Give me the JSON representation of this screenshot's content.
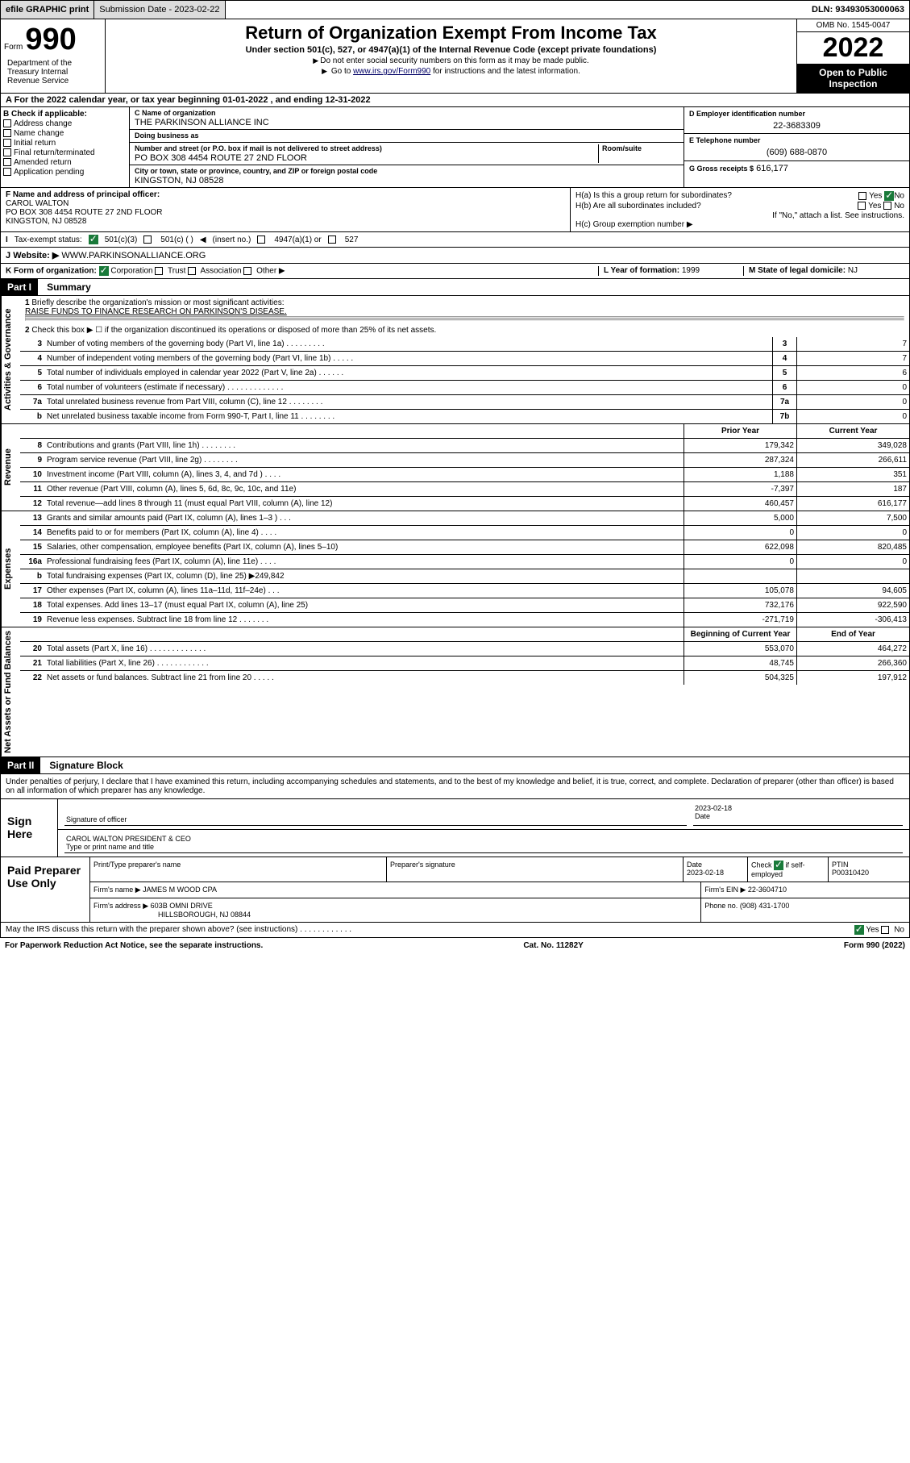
{
  "top": {
    "efile": "efile GRAPHIC print",
    "sub_label": "Submission Date - 2023-02-22",
    "dln": "DLN: 93493053000063"
  },
  "header": {
    "form_label": "Form",
    "form_num": "990",
    "title": "Return of Organization Exempt From Income Tax",
    "sub": "Under section 501(c), 527, or 4947(a)(1) of the Internal Revenue Code (except private foundations)",
    "note1": "Do not enter social security numbers on this form as it may be made public.",
    "note2_pre": "Go to ",
    "note2_link": "www.irs.gov/Form990",
    "note2_post": " for instructions and the latest information.",
    "dept": "Department of the Treasury Internal Revenue Service",
    "omb": "OMB No. 1545-0047",
    "year": "2022",
    "open_pub": "Open to Public Inspection"
  },
  "sectionA": "For the 2022 calendar year, or tax year beginning 01-01-2022    , and ending 12-31-2022",
  "colB": {
    "label": "B Check if applicable:",
    "opts": [
      "Address change",
      "Name change",
      "Initial return",
      "Final return/terminated",
      "Amended return",
      "Application pending"
    ]
  },
  "colC": {
    "name_label": "C Name of organization",
    "name": "THE PARKINSON ALLIANCE INC",
    "dba_label": "Doing business as",
    "dba": "",
    "street_label": "Number and street (or P.O. box if mail is not delivered to street address)",
    "street": "PO BOX 308 4454 ROUTE 27 2ND FLOOR",
    "room_label": "Room/suite",
    "city_label": "City or town, state or province, country, and ZIP or foreign postal code",
    "city": "KINGSTON, NJ  08528"
  },
  "colD": {
    "label": "D Employer identification number",
    "val": "22-3683309"
  },
  "colE": {
    "label": "E Telephone number",
    "val": "(609) 688-0870"
  },
  "colG": {
    "label": "G Gross receipts $",
    "val": "616,177"
  },
  "rowF": {
    "label": "F Name and address of principal officer:",
    "name": "CAROL WALTON",
    "addr1": "PO BOX 308 4454 ROUTE 27 2ND FLOOR",
    "addr2": "KINGSTON, NJ  08528"
  },
  "rowH": {
    "a_label": "H(a)  Is this a group return for subordinates?",
    "a_yes": "Yes",
    "a_no": "No",
    "b_label": "H(b)  Are all subordinates included?",
    "b_yes": "Yes",
    "b_no": "No",
    "b_note": "If \"No,\" attach a list. See instructions.",
    "c_label": "H(c)  Group exemption number"
  },
  "rowI": {
    "label": "Tax-exempt status:",
    "o1": "501(c)(3)",
    "o2": "501(c) (  )",
    "o2b": "(insert no.)",
    "o3": "4947(a)(1) or",
    "o4": "527"
  },
  "rowJ": {
    "label": "Website:",
    "val": "WWW.PARKINSONALLIANCE.ORG"
  },
  "rowK": {
    "label": "K Form of organization:",
    "o1": "Corporation",
    "o2": "Trust",
    "o3": "Association",
    "o4": "Other"
  },
  "rowL": {
    "label": "L Year of formation:",
    "val": "1999"
  },
  "rowM": {
    "label": "M State of legal domicile:",
    "val": "NJ"
  },
  "part1": {
    "hdr": "Part I",
    "title": "Summary"
  },
  "vlabels": {
    "gov": "Activities & Governance",
    "rev": "Revenue",
    "exp": "Expenses",
    "net": "Net Assets or Fund Balances"
  },
  "q1": {
    "num": "1",
    "text": "Briefly describe the organization's mission or most significant activities:",
    "ans": "RAISE FUNDS TO FINANCE RESEARCH ON PARKINSON'S DISEASE."
  },
  "q2": {
    "num": "2",
    "text": "Check this box ▶ ☐  if the organization discontinued its operations or disposed of more than 25% of its net assets."
  },
  "gov_rows": [
    {
      "n": "3",
      "t": "Number of voting members of the governing body (Part VI, line 1a)   .    .    .    .    .    .    .    .    .",
      "b": "3",
      "v": "7"
    },
    {
      "n": "4",
      "t": "Number of independent voting members of the governing body (Part VI, line 1b)  .    .    .    .    .",
      "b": "4",
      "v": "7"
    },
    {
      "n": "5",
      "t": "Total number of individuals employed in calendar year 2022 (Part V, line 2a)     .    .    .    .    .    .",
      "b": "5",
      "v": "6"
    },
    {
      "n": "6",
      "t": "Total number of volunteers (estimate if necessary)   .    .    .    .    .    .    .    .    .    .    .    .    .",
      "b": "6",
      "v": "0"
    },
    {
      "n": "7a",
      "t": "Total unrelated business revenue from Part VIII, column (C), line 12   .    .    .    .    .    .    .    .",
      "b": "7a",
      "v": "0"
    },
    {
      "n": "b",
      "t": "Net unrelated business taxable income from Form 990-T, Part I, line 11  .    .    .    .    .    .    .    .",
      "b": "7b",
      "v": "0"
    }
  ],
  "col_hdr": {
    "prior": "Prior Year",
    "curr": "Current Year"
  },
  "rev_rows": [
    {
      "n": "8",
      "t": "Contributions and grants (Part VIII, line 1h)    .    .    .    .    .    .    .    .",
      "p": "179,342",
      "c": "349,028"
    },
    {
      "n": "9",
      "t": "Program service revenue (Part VIII, line 2g)    .    .    .    .    .    .    .    .",
      "p": "287,324",
      "c": "266,611"
    },
    {
      "n": "10",
      "t": "Investment income (Part VIII, column (A), lines 3, 4, and 7d )    .    .    .    .",
      "p": "1,188",
      "c": "351"
    },
    {
      "n": "11",
      "t": "Other revenue (Part VIII, column (A), lines 5, 6d, 8c, 9c, 10c, and 11e)",
      "p": "-7,397",
      "c": "187"
    },
    {
      "n": "12",
      "t": "Total revenue—add lines 8 through 11 (must equal Part VIII, column (A), line 12)",
      "p": "460,457",
      "c": "616,177"
    }
  ],
  "exp_rows": [
    {
      "n": "13",
      "t": "Grants and similar amounts paid (Part IX, column (A), lines 1–3 )   .    .    .",
      "p": "5,000",
      "c": "7,500"
    },
    {
      "n": "14",
      "t": "Benefits paid to or for members (Part IX, column (A), line 4)   .    .    .    .",
      "p": "0",
      "c": "0"
    },
    {
      "n": "15",
      "t": "Salaries, other compensation, employee benefits (Part IX, column (A), lines 5–10)",
      "p": "622,098",
      "c": "820,485"
    },
    {
      "n": "16a",
      "t": "Professional fundraising fees (Part IX, column (A), line 11e)   .    .    .    .",
      "p": "0",
      "c": "0"
    },
    {
      "n": "b",
      "t": "Total fundraising expenses (Part IX, column (D), line 25) ▶249,842",
      "p": "",
      "c": ""
    },
    {
      "n": "17",
      "t": "Other expenses (Part IX, column (A), lines 11a–11d, 11f–24e)   .    .    .",
      "p": "105,078",
      "c": "94,605"
    },
    {
      "n": "18",
      "t": "Total expenses. Add lines 13–17 (must equal Part IX, column (A), line 25)",
      "p": "732,176",
      "c": "922,590"
    },
    {
      "n": "19",
      "t": "Revenue less expenses. Subtract line 18 from line 12   .    .    .    .    .    .    .",
      "p": "-271,719",
      "c": "-306,413"
    }
  ],
  "net_hdr": {
    "beg": "Beginning of Current Year",
    "end": "End of Year"
  },
  "net_rows": [
    {
      "n": "20",
      "t": "Total assets (Part X, line 16)   .    .    .    .    .    .    .    .    .    .    .    .    .",
      "p": "553,070",
      "c": "464,272"
    },
    {
      "n": "21",
      "t": "Total liabilities (Part X, line 26)   .    .    .    .    .    .    .    .    .    .    .    .",
      "p": "48,745",
      "c": "266,360"
    },
    {
      "n": "22",
      "t": "Net assets or fund balances. Subtract line 21 from line 20   .    .    .    .    .",
      "p": "504,325",
      "c": "197,912"
    }
  ],
  "part2": {
    "hdr": "Part II",
    "title": "Signature Block"
  },
  "sig_text": "Under penalties of perjury, I declare that I have examined this return, including accompanying schedules and statements, and to the best of my knowledge and belief, it is true, correct, and complete. Declaration of preparer (other than officer) is based on all information of which preparer has any knowledge.",
  "sign": {
    "here": "Sign Here",
    "sig_label": "Signature of officer",
    "date_label": "Date",
    "date": "2023-02-18",
    "name": "CAROL WALTON  PRESIDENT & CEO",
    "name_label": "Type or print name and title"
  },
  "paid": {
    "label": "Paid Preparer Use Only",
    "c1": "Print/Type preparer's name",
    "c2": "Preparer's signature",
    "c3": "Date",
    "c3v": "2023-02-18",
    "c4a": "Check",
    "c4b": "if self-employed",
    "c5": "PTIN",
    "c5v": "P00310420",
    "firm_label": "Firm's name",
    "firm": "JAMES M WOOD CPA",
    "ein_label": "Firm's EIN",
    "ein": "22-3604710",
    "addr_label": "Firm's address",
    "addr1": "603B OMNI DRIVE",
    "addr2": "HILLSBOROUGH, NJ  08844",
    "phone_label": "Phone no.",
    "phone": "(908) 431-1700"
  },
  "discuss": {
    "text": "May the IRS discuss this return with the preparer shown above? (see instructions)   .    .    .    .    .    .    .    .    .    .    .    .",
    "yes": "Yes",
    "no": "No"
  },
  "footer": {
    "left": "For Paperwork Reduction Act Notice, see the separate instructions.",
    "mid": "Cat. No. 11282Y",
    "right": "Form 990 (2022)"
  }
}
